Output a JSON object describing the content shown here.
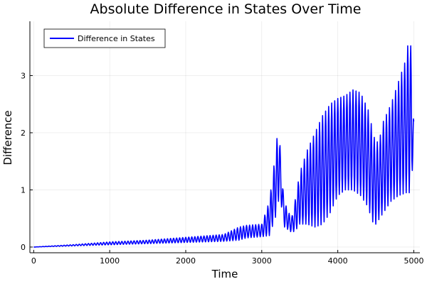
{
  "chart_data": {
    "type": "line",
    "title": "Absolute Difference in States Over Time",
    "xlabel": "Time",
    "ylabel": "Difference",
    "xlim": [
      -50,
      5080
    ],
    "ylim": [
      -0.1,
      3.95
    ],
    "x_ticks": [
      0,
      1000,
      2000,
      3000,
      4000,
      5000
    ],
    "x_tick_labels": [
      "0",
      "1000",
      "2000",
      "3000",
      "4000",
      "5000"
    ],
    "y_ticks": [
      0,
      1,
      2,
      3
    ],
    "y_tick_labels": [
      "0",
      "1",
      "2",
      "3"
    ],
    "grid": true,
    "legend_position": "top-left",
    "series": [
      {
        "name": "Difference in States",
        "color": "#0000ff",
        "oscillation_period": 40,
        "upper_envelope": {
          "x": [
            0,
            500,
            1000,
            1500,
            2000,
            2500,
            2700,
            2800,
            3000,
            3100,
            3150,
            3200,
            3230,
            3250,
            3280,
            3300,
            3350,
            3400,
            3450,
            3500,
            3600,
            3700,
            3800,
            3900,
            4000,
            4100,
            4200,
            4300,
            4400,
            4450,
            4500,
            4550,
            4600,
            4700,
            4800,
            4900,
            4950,
            5000
          ],
          "y": [
            0.0,
            0.04,
            0.09,
            0.12,
            0.17,
            0.22,
            0.35,
            0.38,
            0.4,
            0.8,
            1.3,
            1.9,
            1.95,
            1.6,
            1.0,
            0.8,
            0.6,
            0.55,
            0.9,
            1.3,
            1.7,
            2.0,
            2.3,
            2.5,
            2.6,
            2.65,
            2.75,
            2.7,
            2.4,
            2.1,
            1.8,
            1.9,
            2.2,
            2.5,
            2.9,
            3.3,
            3.85,
            2.2
          ]
        },
        "lower_envelope": {
          "x": [
            0,
            500,
            1000,
            1500,
            2000,
            2500,
            2700,
            2800,
            3000,
            3100,
            3150,
            3200,
            3230,
            3250,
            3280,
            3300,
            3350,
            3400,
            3450,
            3500,
            3600,
            3700,
            3800,
            3900,
            4000,
            4100,
            4200,
            4300,
            4400,
            4450,
            4500,
            4550,
            4600,
            4700,
            4800,
            4900,
            4950,
            5000
          ],
          "y": [
            0.0,
            0.02,
            0.04,
            0.06,
            0.08,
            0.1,
            0.12,
            0.16,
            0.18,
            0.2,
            0.4,
            0.6,
            0.9,
            0.8,
            0.5,
            0.35,
            0.3,
            0.25,
            0.3,
            0.4,
            0.4,
            0.35,
            0.4,
            0.6,
            0.9,
            1.0,
            1.0,
            0.9,
            0.7,
            0.45,
            0.4,
            0.5,
            0.6,
            0.8,
            0.9,
            0.95,
            0.95,
            1.6
          ]
        }
      }
    ]
  }
}
